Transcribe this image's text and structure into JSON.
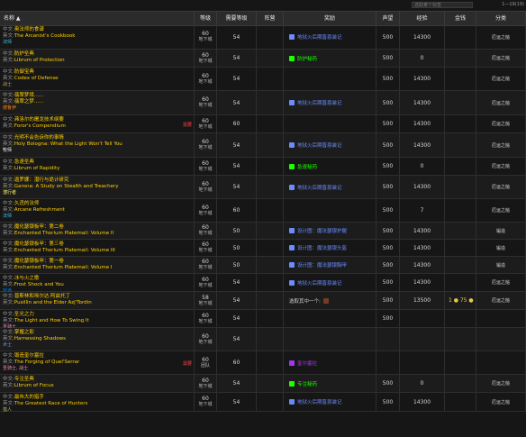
{
  "topbar": {
    "search_placeholder": "选取某个标签",
    "pager": "1—19(19)"
  },
  "columns": [
    "名称 ▲",
    "等级",
    "需要等级",
    "阵营",
    "奖励",
    "声望",
    "经验",
    "金钱",
    "分类"
  ],
  "colors": {
    "quest_name": "#ffd100",
    "blue_item": "#6a8cff",
    "green_item": "#1eff00",
    "white_item": "#ffffff",
    "mage": "#40c7eb",
    "warlock": "#8787ed",
    "warrior": "#c79c6e",
    "rogue": "#fff569",
    "paladin": "#f58cba",
    "priest": "#ffffff",
    "shaman": "#0070de",
    "hunter": "#abd473",
    "required_red": "#ff4040"
  },
  "rows": [
    {
      "lbl_cn": "中文:",
      "cn": "奥法师的食谱",
      "lbl_en": "英文:",
      "en": "The Arcanist's Cookbook",
      "cls": "法师",
      "cls_color": "#40c7eb",
      "req": "",
      "lvl": "60",
      "lvl_sub": "地下城",
      "need": "54",
      "faction": "",
      "reward": "地狱火后期晋恩装记",
      "reward_color": "#6a8cff",
      "rep": "500",
      "xp": "14300",
      "money": "",
      "cat": "厄运之槌"
    },
    {
      "lbl_cn": "中文:",
      "cn": "防护圣典",
      "lbl_en": "英文:",
      "en": "Librum of Protection",
      "cls": "",
      "cls_color": "",
      "req": "",
      "lvl": "60",
      "lvl_sub": "地下城",
      "need": "54",
      "faction": "",
      "reward": "防护秘药",
      "reward_color": "#1eff00",
      "rep": "500",
      "xp": "0",
      "money": "",
      "cat": "厄运之槌"
    },
    {
      "lbl_cn": "中文:",
      "cn": "防御宝典",
      "lbl_en": "英文:",
      "en": "Codex of Defense",
      "cls": "战士",
      "cls_color": "#c79c6e",
      "req": "",
      "lvl": "60",
      "lvl_sub": "地下城",
      "need": "54",
      "faction": "",
      "reward": "",
      "reward_color": "",
      "rep": "500",
      "xp": "14300",
      "money": "",
      "cat": "厄运之槌"
    },
    {
      "lbl_cn": "中文:",
      "cn": "翡翠梦境......",
      "lbl_en": "英文:",
      "en": "翡翠之梦......",
      "cls": "德鲁伊",
      "cls_color": "#ff7d0a",
      "req": "",
      "lvl": "60",
      "lvl_sub": "地下城",
      "need": "54",
      "faction": "",
      "reward": "地狱火后期晋恩装记",
      "reward_color": "#6a8cff",
      "rep": "500",
      "xp": "14300",
      "money": "",
      "cat": "厄运之槌"
    },
    {
      "lbl_cn": "中文:",
      "cn": "弗洛尔的屠龙技术纲要",
      "lbl_en": "英文:",
      "en": "Foror's Compendium",
      "cls": "",
      "cls_color": "",
      "req": "",
      "lvl": "60",
      "lvl_sub": "地下城",
      "need": "60",
      "faction": "",
      "reward": "",
      "reward_color": "",
      "rep": "500",
      "xp": "14300",
      "money": "",
      "cat": "厄运之槌"
    },
    {
      "lbl_cn": "中文:",
      "cn": "光明不会告诉你的事情",
      "lbl_en": "英文:",
      "en": "Holy Bologna:  What the Light Won't Tell You",
      "cls": "牧师",
      "cls_color": "#ffffff",
      "req": "",
      "lvl": "60",
      "lvl_sub": "地下城",
      "need": "54",
      "faction": "",
      "reward": "地狱火后期晋恩装记",
      "reward_color": "#6a8cff",
      "rep": "500",
      "xp": "14300",
      "money": "",
      "cat": "厄运之槌"
    },
    {
      "lbl_cn": "中文:",
      "cn": "急速圣典",
      "lbl_en": "英文:",
      "en": "Librum of Rapidity",
      "cls": "",
      "cls_color": "",
      "req": "",
      "lvl": "60",
      "lvl_sub": "地下城",
      "need": "54",
      "faction": "",
      "reward": "急速秘药",
      "reward_color": "#1eff00",
      "rep": "500",
      "xp": "0",
      "money": "",
      "cat": "厄运之槌"
    },
    {
      "lbl_cn": "中文:",
      "cn": "迦罗娜：潜行与诡计研究",
      "lbl_en": "英文:",
      "en": "Garona:  A Study on Stealth and Treachery",
      "cls": "潜行者",
      "cls_color": "#fff569",
      "req": "",
      "lvl": "60",
      "lvl_sub": "地下城",
      "need": "54",
      "faction": "",
      "reward": "地狱火后期晋恩装记",
      "reward_color": "#6a8cff",
      "rep": "500",
      "xp": "14300",
      "money": "",
      "cat": "厄运之槌"
    },
    {
      "lbl_cn": "中文:",
      "cn": "久违的法师",
      "lbl_en": "英文:",
      "en": "Arcane Refreshment",
      "cls": "法师",
      "cls_color": "#40c7eb",
      "req": "",
      "lvl": "60",
      "lvl_sub": "地下城",
      "need": "60",
      "faction": "",
      "reward": "",
      "reward_color": "",
      "rep": "500",
      "xp": "7",
      "money": "",
      "cat": "厄运之槌"
    },
    {
      "lbl_cn": "中文:",
      "cn": "魔化瑟银板甲：第二卷",
      "lbl_en": "英文:",
      "en": "Enchanted Thorium Platemail:  Volume II",
      "cls": "",
      "cls_color": "",
      "req": "",
      "lvl": "60",
      "lvl_sub": "地下城",
      "need": "50",
      "faction": "",
      "reward": "设计图：魔法瑟银护腿",
      "reward_color": "#6a8cff",
      "rep": "500",
      "xp": "14300",
      "money": "",
      "cat": "锻造"
    },
    {
      "lbl_cn": "中文:",
      "cn": "魔化瑟银板甲：第三卷",
      "lbl_en": "英文:",
      "en": "Enchanted Thorium Platemail:  Volume III",
      "cls": "",
      "cls_color": "",
      "req": "",
      "lvl": "60",
      "lvl_sub": "地下城",
      "need": "50",
      "faction": "",
      "reward": "设计图：魔法瑟银头盔",
      "reward_color": "#6a8cff",
      "rep": "500",
      "xp": "14300",
      "money": "",
      "cat": "锻造"
    },
    {
      "lbl_cn": "中文:",
      "cn": "魔化瑟银板甲：第一卷",
      "lbl_en": "英文:",
      "en": "Enchanted Thorium Platemail:  Volume I",
      "cls": "",
      "cls_color": "",
      "req": "",
      "lvl": "60",
      "lvl_sub": "地下城",
      "need": "50",
      "faction": "",
      "reward": "设计图：魔法瑟银胸甲",
      "reward_color": "#6a8cff",
      "rep": "500",
      "xp": "14300",
      "money": "",
      "cat": "锻造"
    },
    {
      "lbl_cn": "中文:",
      "cn": "冰与火之歌",
      "lbl_en": "英文:",
      "en": "Frost Shock and You",
      "cls": "萨满",
      "cls_color": "#0070de",
      "req": "",
      "lvl": "60",
      "lvl_sub": "地下城",
      "need": "54",
      "faction": "",
      "reward": "地狱火后期晋恩装记",
      "reward_color": "#6a8cff",
      "rep": "500",
      "xp": "14300",
      "money": "",
      "cat": "厄运之槌"
    },
    {
      "lbl_cn": "中文:",
      "cn": "普斯林和埃尔达·阿兹托丁",
      "lbl_en": "英文:",
      "en": "Pusillin and the Elder Azj'Tordin",
      "cls": "",
      "cls_color": "",
      "req": "",
      "lvl": "58",
      "lvl_sub": "地下城",
      "need": "54",
      "faction": "",
      "reward": "选取其中一个:",
      "reward_color": "#cfcfcf",
      "rep": "500",
      "xp": "13500",
      "money": "1 ● 75 ●",
      "cat": "厄运之槌"
    },
    {
      "lbl_cn": "中文:",
      "cn": "圣光之力",
      "lbl_en": "英文:",
      "en": "The Light and How To Swing It",
      "cls": "圣骑士",
      "cls_color": "#f58cba",
      "req": "",
      "lvl": "60",
      "lvl_sub": "地下城",
      "need": "54",
      "faction": "",
      "reward": "",
      "reward_color": "",
      "rep": "500",
      "xp": "",
      "money": "",
      "cat": ""
    },
    {
      "lbl_cn": "中文:",
      "cn": "掌握之影",
      "lbl_en": "英文:",
      "en": "Harnessing Shadows",
      "cls": "术士",
      "cls_color": "#8787ed",
      "req": "",
      "lvl": "60",
      "lvl_sub": "地下城",
      "need": "54",
      "faction": "",
      "reward": "",
      "reward_color": "",
      "rep": "",
      "xp": "",
      "money": "",
      "cat": ""
    },
    {
      "lbl_cn": "中文:",
      "cn": "锻造奎尔塞拉",
      "lbl_en": "英文:",
      "en": "The Forging of Quel'Serrar",
      "cls": "圣骑士, 战士",
      "cls_color": "#f58cba",
      "req": "",
      "lvl": "60",
      "lvl_sub": "团队",
      "need": "60",
      "faction": "",
      "reward": "奎尔塞拉",
      "reward_color": "#a335ee",
      "rep": "",
      "xp": "",
      "money": "",
      "cat": ""
    },
    {
      "lbl_cn": "中文:",
      "cn": "专注圣典",
      "lbl_en": "英文:",
      "en": "Librum of Focus",
      "cls": "",
      "cls_color": "",
      "req": "",
      "lvl": "60",
      "lvl_sub": "地下城",
      "need": "54",
      "faction": "",
      "reward": "专注秘药",
      "reward_color": "#1eff00",
      "rep": "500",
      "xp": "0",
      "money": "",
      "cat": "厄运之槌"
    },
    {
      "lbl_cn": "中文:",
      "cn": "最伟大的猎手",
      "lbl_en": "英文:",
      "en": "The Greatest Race of Hunters",
      "cls": "猎人",
      "cls_color": "#abd473",
      "req": "",
      "lvl": "60",
      "lvl_sub": "地下城",
      "need": "54",
      "faction": "",
      "reward": "地狱火后期晋恩装记",
      "reward_color": "#6a8cff",
      "rep": "500",
      "xp": "14300",
      "money": "",
      "cat": "厄运之槌"
    }
  ],
  "required_marks": {
    "4": "需要",
    "16": "需要"
  }
}
